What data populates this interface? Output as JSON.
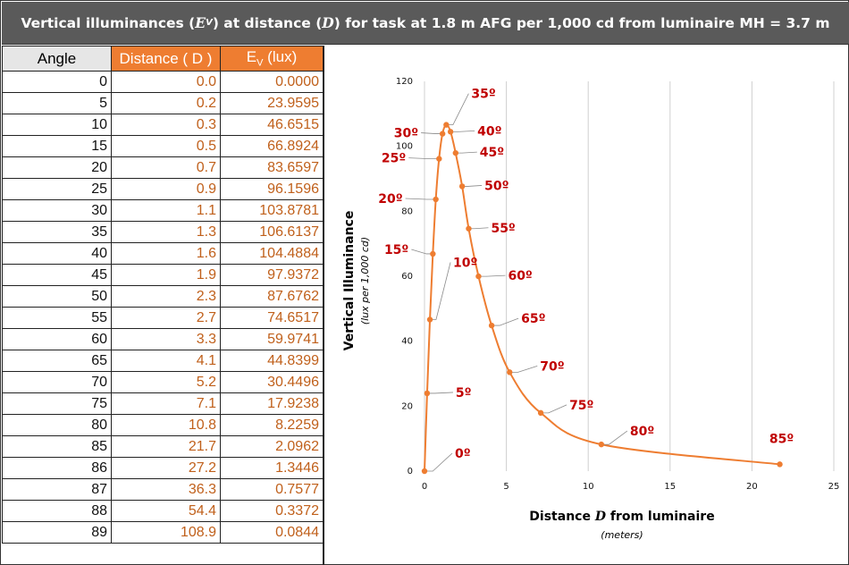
{
  "title": {
    "part1": "Vertical illuminances (",
    "ev_symbol": "E",
    "ev_sub": "V",
    "part2": ") at distance (",
    "d_symbol": "D",
    "part3": ") for task at 1.8 m AFG per 1,000 cd from luminaire MH = 3.7 m"
  },
  "table": {
    "headers": {
      "angle": "Angle",
      "distance": "Distance ( D )",
      "ev_main": "E",
      "ev_sub": "V",
      "ev_unit": " (lux)"
    },
    "rows": [
      {
        "angle": "0",
        "distance": "0.0",
        "ev": "0.0000"
      },
      {
        "angle": "5",
        "distance": "0.2",
        "ev": "23.9595"
      },
      {
        "angle": "10",
        "distance": "0.3",
        "ev": "46.6515"
      },
      {
        "angle": "15",
        "distance": "0.5",
        "ev": "66.8924"
      },
      {
        "angle": "20",
        "distance": "0.7",
        "ev": "83.6597"
      },
      {
        "angle": "25",
        "distance": "0.9",
        "ev": "96.1596"
      },
      {
        "angle": "30",
        "distance": "1.1",
        "ev": "103.8781"
      },
      {
        "angle": "35",
        "distance": "1.3",
        "ev": "106.6137"
      },
      {
        "angle": "40",
        "distance": "1.6",
        "ev": "104.4884"
      },
      {
        "angle": "45",
        "distance": "1.9",
        "ev": "97.9372"
      },
      {
        "angle": "50",
        "distance": "2.3",
        "ev": "87.6762"
      },
      {
        "angle": "55",
        "distance": "2.7",
        "ev": "74.6517"
      },
      {
        "angle": "60",
        "distance": "3.3",
        "ev": "59.9741"
      },
      {
        "angle": "65",
        "distance": "4.1",
        "ev": "44.8399"
      },
      {
        "angle": "70",
        "distance": "5.2",
        "ev": "30.4496"
      },
      {
        "angle": "75",
        "distance": "7.1",
        "ev": "17.9238"
      },
      {
        "angle": "80",
        "distance": "10.8",
        "ev": "8.2259"
      },
      {
        "angle": "85",
        "distance": "21.7",
        "ev": "2.0962"
      },
      {
        "angle": "86",
        "distance": "27.2",
        "ev": "1.3446"
      },
      {
        "angle": "87",
        "distance": "36.3",
        "ev": "0.7577"
      },
      {
        "angle": "88",
        "distance": "54.4",
        "ev": "0.3372"
      },
      {
        "angle": "89",
        "distance": "108.9",
        "ev": "0.0844"
      }
    ]
  },
  "chart_data": {
    "type": "scatter",
    "xlabel": "Distance D from luminaire",
    "xlabel_parts": {
      "pre": "Distance ",
      "sym": "D",
      "post": " from luminaire"
    },
    "xlabel_sub": "(meters)",
    "ylabel": "Vertical Illuminance",
    "ylabel_sub": "(lux per 1,000 cd)",
    "xlim": [
      0,
      25
    ],
    "ylim": [
      0,
      120
    ],
    "xticks": [
      0,
      5,
      10,
      15,
      20,
      25
    ],
    "yticks": [
      0,
      20,
      40,
      60,
      80,
      100,
      120
    ],
    "grid": "vertical",
    "line_color": "#ee7d31",
    "label_color": "#c00000",
    "points": [
      {
        "angle": 0,
        "label": "0º",
        "x": 0.0,
        "y": 0.0
      },
      {
        "angle": 5,
        "label": "5º",
        "x": 0.16,
        "y": 23.9595
      },
      {
        "angle": 10,
        "label": "10º",
        "x": 0.33,
        "y": 46.6515
      },
      {
        "angle": 15,
        "label": "15º",
        "x": 0.51,
        "y": 66.8924
      },
      {
        "angle": 20,
        "label": "20º",
        "x": 0.69,
        "y": 83.6597
      },
      {
        "angle": 25,
        "label": "25º",
        "x": 0.89,
        "y": 96.1596
      },
      {
        "angle": 30,
        "label": "30º",
        "x": 1.1,
        "y": 103.8781
      },
      {
        "angle": 35,
        "label": "35º",
        "x": 1.33,
        "y": 106.6137
      },
      {
        "angle": 40,
        "label": "40º",
        "x": 1.59,
        "y": 104.4884
      },
      {
        "angle": 45,
        "label": "45º",
        "x": 1.9,
        "y": 97.9372
      },
      {
        "angle": 50,
        "label": "50º",
        "x": 2.3,
        "y": 87.6762
      },
      {
        "angle": 55,
        "label": "55º",
        "x": 2.7,
        "y": 74.6517
      },
      {
        "angle": 60,
        "label": "60º",
        "x": 3.3,
        "y": 59.9741
      },
      {
        "angle": 65,
        "label": "65º",
        "x": 4.1,
        "y": 44.8399
      },
      {
        "angle": 70,
        "label": "70º",
        "x": 5.2,
        "y": 30.4496
      },
      {
        "angle": 75,
        "label": "75º",
        "x": 7.1,
        "y": 17.9238
      },
      {
        "angle": 80,
        "label": "80º",
        "x": 10.8,
        "y": 8.2259
      },
      {
        "angle": 85,
        "label": "85º",
        "x": 21.7,
        "y": 2.0962
      }
    ]
  }
}
